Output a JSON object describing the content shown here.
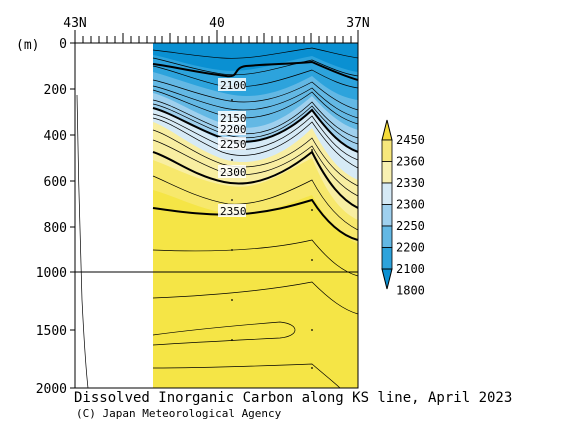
{
  "chart_data": {
    "type": "heatmap",
    "title": "Dissolved Inorganic Carbon along KS line, April 2023",
    "credit": "(C) Japan Meteorological Agency",
    "ylabel": "(m)",
    "x_ticks": [
      "43N",
      "40",
      "37N"
    ],
    "x_range": [
      43,
      37
    ],
    "y_ticks": [
      "0",
      "200",
      "400",
      "600",
      "800",
      "1000",
      "1500",
      "2000"
    ],
    "y_range": [
      0,
      2000
    ],
    "y_scale_break": 1000,
    "contour_labels": [
      "2100",
      "2150",
      "2200",
      "2250",
      "2300",
      "2350"
    ],
    "legend": {
      "labels": [
        "2450",
        "2360",
        "2330",
        "2300",
        "2250",
        "2200",
        "2100",
        "1800"
      ],
      "colors": [
        "#f5dc3a",
        "#f7e77c",
        "#f8f0b2",
        "#d6eaf6",
        "#9fd0ee",
        "#63b8e4",
        "#2da3dc",
        "#0a90d2"
      ]
    },
    "colors": {
      "deep_water": "#f5e546",
      "no_data": "#ffffff"
    }
  }
}
